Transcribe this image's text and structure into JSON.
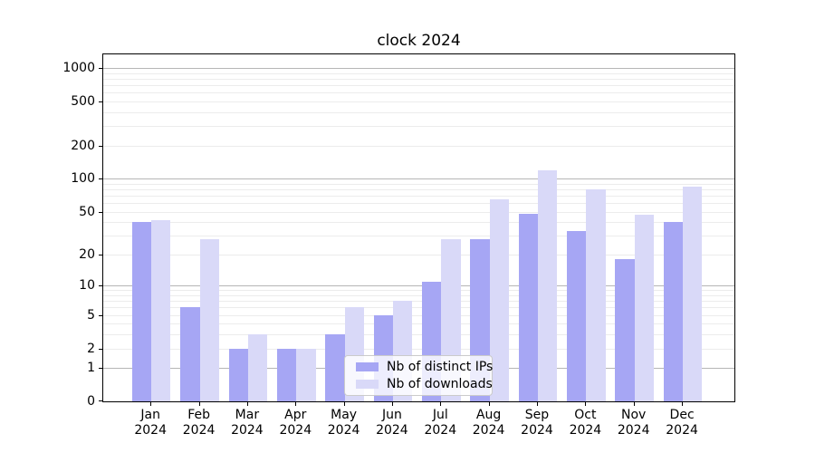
{
  "title": "clock 2024",
  "chart_data": {
    "type": "bar",
    "title": "clock 2024",
    "categories": [
      "Jan 2024",
      "Feb 2024",
      "Mar 2024",
      "Apr 2024",
      "May 2024",
      "Jun 2024",
      "Jul 2024",
      "Aug 2024",
      "Sep 2024",
      "Oct 2024",
      "Nov 2024",
      "Dec 2024"
    ],
    "series": [
      {
        "name": "Nb of distinct IPs",
        "color": "#a6a6f4",
        "values": [
          40,
          6,
          2,
          2,
          3,
          5,
          11,
          28,
          48,
          33,
          18,
          40
        ]
      },
      {
        "name": "Nb of downloads",
        "color": "#d9d9f8",
        "values": [
          42,
          28,
          3,
          2,
          6,
          7,
          28,
          65,
          118,
          80,
          47,
          84
        ]
      }
    ],
    "y_axis": {
      "scale": "log1p",
      "tick_values": [
        0,
        1,
        2,
        5,
        10,
        20,
        50,
        100,
        200,
        500,
        1000
      ],
      "tick_labels": [
        "0",
        "1",
        "2",
        "5",
        "10",
        "20",
        "50",
        "100",
        "200",
        "500",
        "1000"
      ],
      "max": 1325,
      "major_gridlines": [
        1,
        10,
        100,
        1000
      ],
      "grid": true
    },
    "legend_position": "lower center"
  }
}
